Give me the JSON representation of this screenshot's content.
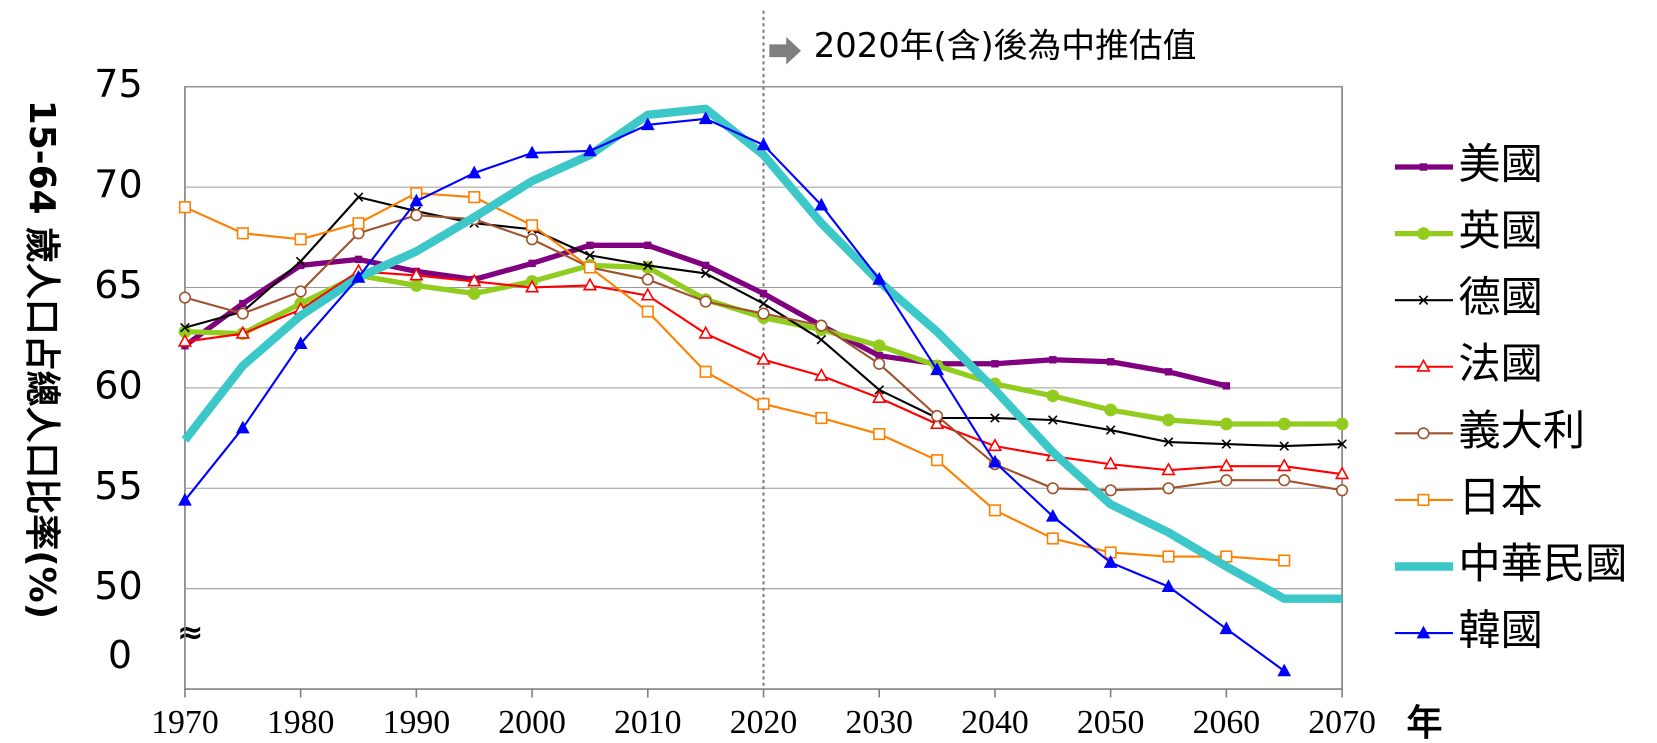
{
  "chart_data": {
    "type": "line",
    "y_axis_label": "15-64 歲人口占總人口比率(%)",
    "x_axis_label": "年",
    "annotation": "2020年(含)後為中推估值",
    "annotation_x": 2020,
    "axis_break_mark": "≈",
    "axis_break_label": "0",
    "xlim": [
      1970,
      2070
    ],
    "xticks": [
      1970,
      1980,
      1990,
      2000,
      2010,
      2020,
      2030,
      2040,
      2050,
      2060,
      2070
    ],
    "ylim": [
      45,
      75
    ],
    "yticks": [
      50,
      55,
      60,
      65,
      70,
      75
    ],
    "grid": true,
    "legend": "right",
    "x": [
      1970,
      1975,
      1980,
      1985,
      1990,
      1995,
      2000,
      2005,
      2010,
      2015,
      2020,
      2025,
      2030,
      2035,
      2040,
      2045,
      2050,
      2055,
      2060,
      2065,
      2070
    ],
    "series": [
      {
        "name": "美國",
        "color": "#800080",
        "width": 5,
        "marker": "square-small",
        "values": [
          62.1,
          64.2,
          66.1,
          66.4,
          65.8,
          65.4,
          66.2,
          67.1,
          67.1,
          66.1,
          64.7,
          63.1,
          61.6,
          61.2,
          61.2,
          61.4,
          61.3,
          60.8,
          60.1,
          null,
          null
        ]
      },
      {
        "name": "英國",
        "color": "#92cc1e",
        "width": 5,
        "marker": "dot",
        "values": [
          62.8,
          62.7,
          64.2,
          65.6,
          65.1,
          64.7,
          65.3,
          66.1,
          66.0,
          64.4,
          63.5,
          62.9,
          62.1,
          61.1,
          60.2,
          59.6,
          58.9,
          58.4,
          58.2,
          58.2,
          58.2
        ]
      },
      {
        "name": "德國",
        "color": "#000000",
        "width": 2,
        "marker": "x",
        "values": [
          63.0,
          63.8,
          66.3,
          69.5,
          68.8,
          68.2,
          67.9,
          66.6,
          66.1,
          65.7,
          64.2,
          62.4,
          59.9,
          58.5,
          58.5,
          58.4,
          57.9,
          57.3,
          57.2,
          57.1,
          57.2
        ]
      },
      {
        "name": "法國",
        "color": "#ff0000",
        "width": 2,
        "marker": "triangle-open",
        "values": [
          62.3,
          62.7,
          63.9,
          65.8,
          65.6,
          65.3,
          65.0,
          65.1,
          64.6,
          62.7,
          61.4,
          60.6,
          59.5,
          58.2,
          57.1,
          56.6,
          56.2,
          55.9,
          56.1,
          56.1,
          55.7
        ]
      },
      {
        "name": "義大利",
        "color": "#a0522d",
        "width": 2,
        "marker": "circle-open",
        "values": [
          64.5,
          63.7,
          64.8,
          67.7,
          68.6,
          68.4,
          67.4,
          66.0,
          65.4,
          64.3,
          63.7,
          63.1,
          61.2,
          58.6,
          56.2,
          55.0,
          54.9,
          55.0,
          55.4,
          55.4,
          54.9
        ]
      },
      {
        "name": "日本",
        "color": "#ff7f00",
        "width": 2,
        "marker": "square-open",
        "values": [
          69.0,
          67.7,
          67.4,
          68.2,
          69.7,
          69.5,
          68.1,
          66.0,
          63.8,
          60.8,
          59.2,
          58.5,
          57.7,
          56.4,
          53.9,
          52.5,
          51.8,
          51.6,
          51.6,
          51.4,
          null
        ]
      },
      {
        "name": "中華民國",
        "color": "#3cc8c8",
        "width": 8,
        "marker": "none",
        "values": [
          57.4,
          61.1,
          63.6,
          65.5,
          66.8,
          68.5,
          70.3,
          71.6,
          73.6,
          73.9,
          71.6,
          68.2,
          65.3,
          62.8,
          59.9,
          56.8,
          54.2,
          52.8,
          51.1,
          49.5,
          49.5
        ]
      },
      {
        "name": "韓國",
        "color": "#0000ff",
        "width": 2,
        "marker": "triangle",
        "values": [
          54.4,
          58.0,
          62.2,
          65.5,
          69.3,
          70.7,
          71.7,
          71.8,
          73.1,
          73.4,
          72.1,
          69.1,
          65.4,
          60.9,
          56.3,
          53.6,
          51.3,
          50.1,
          48.0,
          45.9,
          null
        ]
      }
    ]
  }
}
